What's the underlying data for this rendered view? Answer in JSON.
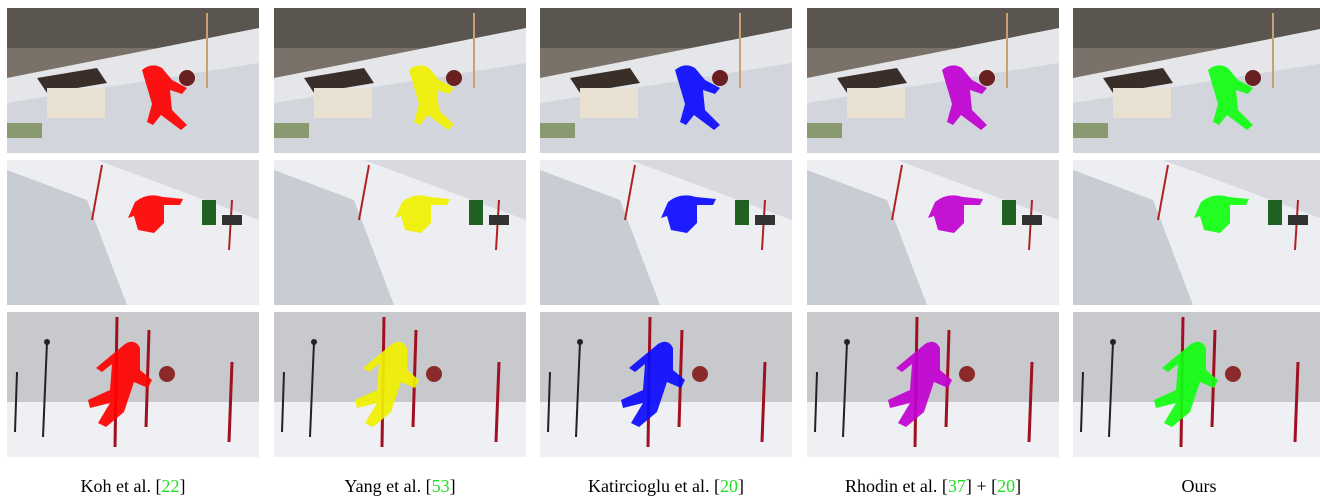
{
  "columns": [
    {
      "caption": [
        {
          "text": "Koh et al. ["
        },
        {
          "cite": "22"
        },
        {
          "text": "]"
        }
      ],
      "mask_color": "#ff0000"
    },
    {
      "caption": [
        {
          "text": "Yang et al. ["
        },
        {
          "cite": "53"
        },
        {
          "text": "]"
        }
      ],
      "mask_color": "#f0f000"
    },
    {
      "caption": [
        {
          "text": "Katircioglu et al. ["
        },
        {
          "cite": "20"
        },
        {
          "text": "]"
        }
      ],
      "mask_color": "#0a0aff"
    },
    {
      "caption": [
        {
          "text": "Rhodin et al. ["
        },
        {
          "cite": "37"
        },
        {
          "text": "] +  ["
        },
        {
          "cite": "20"
        },
        {
          "text": "]"
        }
      ],
      "mask_color": "#c000d0"
    },
    {
      "caption": [
        {
          "text": "Ours"
        }
      ],
      "mask_color": "#10ff10"
    }
  ]
}
